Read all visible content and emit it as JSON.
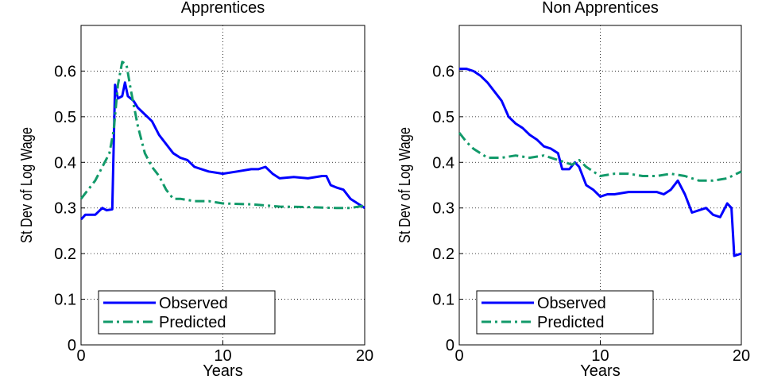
{
  "chart_data": [
    {
      "type": "line",
      "title": "Apprentices",
      "x_label": "Years",
      "y_label": "St Dev of Log Wage",
      "xlim": [
        0,
        20
      ],
      "xticks": [
        0,
        10,
        20
      ],
      "ylim": [
        0,
        0.7
      ],
      "yticks": [
        0,
        0.1,
        0.2,
        0.3,
        0.4,
        0.5,
        0.6
      ],
      "grid": true,
      "legend": "lower left",
      "series": [
        {
          "name": "Observed",
          "color": "#0000ff",
          "style": "solid",
          "x": [
            0,
            0.3,
            1,
            1.5,
            1.8,
            2.2,
            2.4,
            2.6,
            2.9,
            3.1,
            3.3,
            3.7,
            4,
            4.5,
            5,
            5.5,
            6,
            6.5,
            7,
            7.5,
            8,
            8.5,
            9,
            10,
            11,
            12,
            12.5,
            13,
            13.5,
            14,
            15,
            16,
            17,
            17.3,
            17.6,
            18,
            18.5,
            19,
            19.5,
            20
          ],
          "values": [
            0.275,
            0.285,
            0.285,
            0.3,
            0.295,
            0.297,
            0.57,
            0.54,
            0.545,
            0.575,
            0.545,
            0.535,
            0.52,
            0.505,
            0.49,
            0.46,
            0.44,
            0.42,
            0.41,
            0.405,
            0.39,
            0.385,
            0.38,
            0.375,
            0.38,
            0.385,
            0.385,
            0.39,
            0.375,
            0.365,
            0.368,
            0.365,
            0.37,
            0.37,
            0.35,
            0.345,
            0.34,
            0.32,
            0.31,
            0.3
          ]
        },
        {
          "name": "Predicted",
          "color": "#129a6a",
          "style": "dashdot",
          "x": [
            0,
            1,
            1.5,
            2,
            2.3,
            2.6,
            2.9,
            3.2,
            3.5,
            4,
            4.5,
            5,
            5.5,
            6,
            6.5,
            7,
            8,
            9,
            10,
            12,
            14,
            16,
            18,
            19,
            20
          ],
          "values": [
            0.32,
            0.36,
            0.39,
            0.42,
            0.47,
            0.57,
            0.62,
            0.615,
            0.56,
            0.48,
            0.42,
            0.39,
            0.37,
            0.34,
            0.32,
            0.32,
            0.315,
            0.315,
            0.31,
            0.308,
            0.303,
            0.302,
            0.3,
            0.3,
            0.305
          ]
        }
      ]
    },
    {
      "type": "line",
      "title": "Non Apprentices",
      "x_label": "Years",
      "y_label": "St Dev of Log Wage",
      "xlim": [
        0,
        20
      ],
      "xticks": [
        0,
        10,
        20
      ],
      "ylim": [
        0,
        0.7
      ],
      "yticks": [
        0,
        0.1,
        0.2,
        0.3,
        0.4,
        0.5,
        0.6
      ],
      "grid": true,
      "legend": "lower left",
      "series": [
        {
          "name": "Observed",
          "color": "#0000ff",
          "style": "solid",
          "x": [
            0,
            0.5,
            1,
            1.5,
            2,
            2.5,
            3,
            3.5,
            4,
            4.5,
            5,
            5.5,
            6,
            6.5,
            7,
            7.3,
            7.8,
            8.2,
            8.5,
            9,
            9.5,
            10,
            10.5,
            11,
            12,
            13,
            14,
            14.5,
            15,
            15.5,
            16,
            16.5,
            17,
            17.5,
            18,
            18.5,
            19,
            19.3,
            19.5,
            20
          ],
          "values": [
            0.605,
            0.605,
            0.6,
            0.59,
            0.575,
            0.555,
            0.535,
            0.5,
            0.485,
            0.475,
            0.46,
            0.45,
            0.435,
            0.43,
            0.42,
            0.385,
            0.385,
            0.4,
            0.39,
            0.35,
            0.34,
            0.325,
            0.33,
            0.33,
            0.335,
            0.335,
            0.335,
            0.33,
            0.34,
            0.36,
            0.33,
            0.29,
            0.295,
            0.3,
            0.285,
            0.28,
            0.31,
            0.3,
            0.195,
            0.2
          ]
        },
        {
          "name": "Predicted",
          "color": "#129a6a",
          "style": "dashdot",
          "x": [
            0,
            0.5,
            1,
            2,
            3,
            4,
            5,
            6,
            7,
            8,
            8.5,
            9,
            10,
            11,
            12,
            13,
            14,
            15,
            16,
            17,
            18,
            19,
            20
          ],
          "values": [
            0.465,
            0.445,
            0.43,
            0.41,
            0.41,
            0.415,
            0.41,
            0.415,
            0.405,
            0.395,
            0.405,
            0.39,
            0.37,
            0.375,
            0.375,
            0.37,
            0.37,
            0.375,
            0.37,
            0.36,
            0.36,
            0.365,
            0.38
          ]
        }
      ]
    }
  ]
}
